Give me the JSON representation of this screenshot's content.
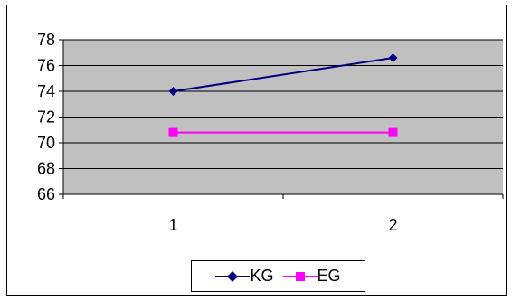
{
  "chart_data": {
    "type": "line",
    "x": [
      1,
      2
    ],
    "xticks": [
      "1",
      "2"
    ],
    "ylim": [
      66,
      78
    ],
    "yticks": [
      "78",
      "76",
      "74",
      "72",
      "70",
      "68",
      "66"
    ],
    "grid": true,
    "legend_position": "bottom",
    "plot_background": "#c0c0c0",
    "series": [
      {
        "name": "KG",
        "values": [
          74.0,
          76.6
        ],
        "color": "#000080",
        "marker": "diamond"
      },
      {
        "name": "EG",
        "values": [
          70.8,
          70.8
        ],
        "color": "#ff00ff",
        "marker": "square"
      }
    ]
  }
}
